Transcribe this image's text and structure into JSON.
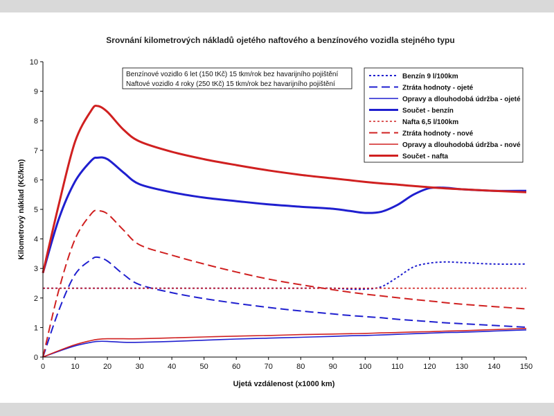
{
  "chart_data": {
    "type": "line",
    "title": "Srovnání kilometrových nákladů ojetého naftového a benzínového vozidla stejného typu",
    "xlabel": "Ujetá vzdálenost (x1000 km)",
    "ylabel": "Kilometrový náklad (Kč/km)",
    "xlim": [
      0,
      150
    ],
    "ylim": [
      0,
      10
    ],
    "x_ticks": [
      0,
      10,
      20,
      30,
      40,
      50,
      60,
      70,
      80,
      90,
      100,
      110,
      120,
      130,
      140,
      150
    ],
    "y_ticks": [
      0,
      1,
      2,
      3,
      4,
      5,
      6,
      7,
      8,
      9,
      10
    ],
    "grid": false,
    "legend_position": "top-right",
    "notes": [
      "Benzínové vozidlo 6 let (150 tKč) 15 tkm/rok bez havarijního pojištění",
      "Naftové vozidlo 4 roky (250 tKč) 15 tkm/rok bez havarijního pojištění"
    ],
    "x": [
      0,
      5,
      10,
      15,
      17,
      20,
      25,
      30,
      40,
      50,
      60,
      70,
      80,
      90,
      95,
      100,
      105,
      110,
      115,
      120,
      125,
      130,
      140,
      150
    ],
    "series": [
      {
        "name": "Benzín 9 l/100km",
        "color": "#1f1fcf",
        "dash": "dot",
        "width": 2,
        "values": [
          2.33,
          2.33,
          2.33,
          2.33,
          2.33,
          2.33,
          2.33,
          2.33,
          2.33,
          2.33,
          2.33,
          2.33,
          2.33,
          2.33,
          2.3,
          2.3,
          2.38,
          2.7,
          3.05,
          3.18,
          3.22,
          3.2,
          3.15,
          3.15
        ]
      },
      {
        "name": "Ztráta hodnoty - ojeté",
        "color": "#1f1fcf",
        "dash": "dash",
        "width": 2,
        "values": [
          0.0,
          1.6,
          2.8,
          3.3,
          3.38,
          3.25,
          2.8,
          2.45,
          2.18,
          1.98,
          1.82,
          1.68,
          1.56,
          1.46,
          1.41,
          1.37,
          1.33,
          1.28,
          1.24,
          1.2,
          1.16,
          1.13,
          1.07,
          1.01
        ]
      },
      {
        "name": "Opravy a dlouhodobá údržba - ojeté",
        "color": "#1f1fcf",
        "dash": "solid",
        "width": 1.6,
        "values": [
          0.0,
          0.2,
          0.38,
          0.5,
          0.53,
          0.53,
          0.5,
          0.5,
          0.53,
          0.57,
          0.61,
          0.64,
          0.67,
          0.7,
          0.72,
          0.73,
          0.75,
          0.77,
          0.79,
          0.81,
          0.83,
          0.84,
          0.88,
          0.92
        ]
      },
      {
        "name": "Součet - benzín",
        "color": "#1f1fcf",
        "dash": "solid",
        "width": 3,
        "values": [
          2.85,
          4.7,
          5.95,
          6.65,
          6.75,
          6.7,
          6.25,
          5.85,
          5.58,
          5.4,
          5.28,
          5.17,
          5.09,
          5.02,
          4.95,
          4.88,
          4.92,
          5.15,
          5.5,
          5.72,
          5.73,
          5.68,
          5.63,
          5.63
        ]
      },
      {
        "name": "Nafta 6,5 l/100km",
        "color": "#d02020",
        "dash": "dot",
        "width": 1.6,
        "values": [
          2.33,
          2.33,
          2.33,
          2.33,
          2.33,
          2.33,
          2.33,
          2.33,
          2.33,
          2.33,
          2.33,
          2.33,
          2.33,
          2.33,
          2.33,
          2.33,
          2.33,
          2.33,
          2.33,
          2.33,
          2.33,
          2.33,
          2.33,
          2.33
        ]
      },
      {
        "name": "Ztráta hodnoty - nové",
        "color": "#d02020",
        "dash": "dash",
        "width": 2,
        "values": [
          0.0,
          2.3,
          4.0,
          4.85,
          4.95,
          4.85,
          4.3,
          3.8,
          3.45,
          3.15,
          2.88,
          2.64,
          2.45,
          2.28,
          2.2,
          2.13,
          2.07,
          2.01,
          1.95,
          1.9,
          1.84,
          1.79,
          1.71,
          1.63
        ]
      },
      {
        "name": "Opravy a dlouhodobá údržba - nové",
        "color": "#d02020",
        "dash": "solid",
        "width": 1.6,
        "values": [
          0.0,
          0.22,
          0.42,
          0.56,
          0.6,
          0.62,
          0.62,
          0.62,
          0.65,
          0.68,
          0.71,
          0.73,
          0.76,
          0.78,
          0.79,
          0.8,
          0.82,
          0.83,
          0.85,
          0.86,
          0.88,
          0.89,
          0.93,
          0.97
        ]
      },
      {
        "name": "Součet - nafta",
        "color": "#d02020",
        "dash": "solid",
        "width": 3,
        "values": [
          2.85,
          5.2,
          7.3,
          8.35,
          8.5,
          8.3,
          7.7,
          7.3,
          6.95,
          6.7,
          6.5,
          6.32,
          6.17,
          6.05,
          5.99,
          5.93,
          5.88,
          5.84,
          5.79,
          5.75,
          5.71,
          5.68,
          5.63,
          5.58
        ]
      }
    ]
  }
}
